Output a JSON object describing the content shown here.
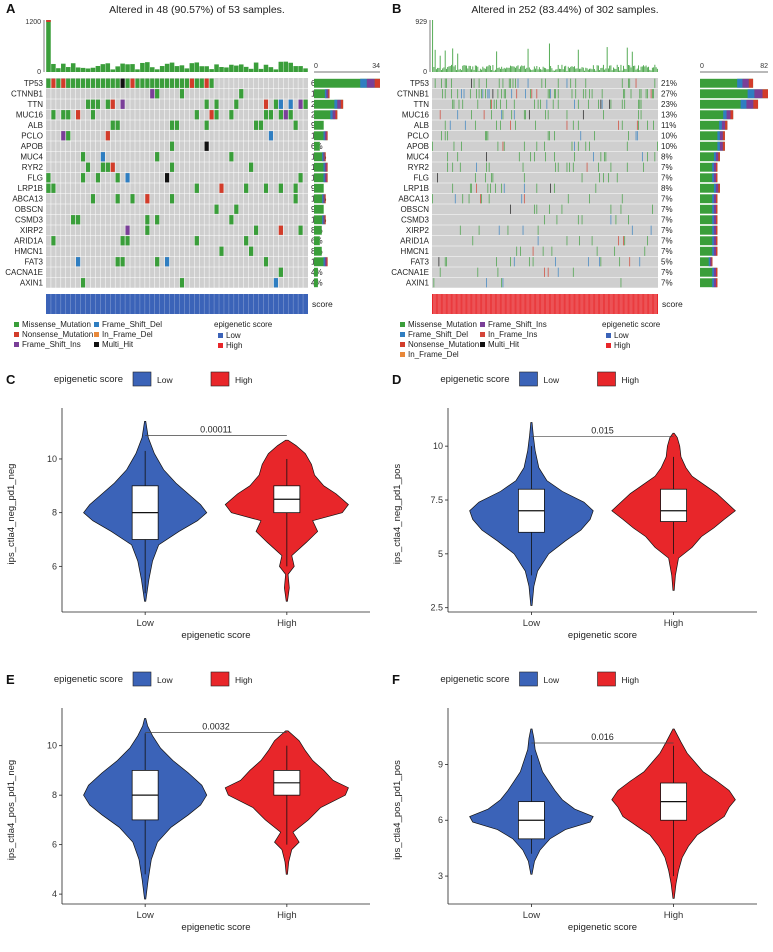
{
  "panels": [
    {
      "id": "A",
      "type": "oncoplot",
      "letter": "A",
      "title": "Altered in 48 (90.57%) of 53 samples.",
      "tmb_max": 1200,
      "tmb_min": 0,
      "side_axis": [
        0,
        34
      ],
      "n_samples": 53,
      "genes": [
        "TP53",
        "CTNNB1",
        "TTN",
        "MUC16",
        "ALB",
        "PCLO",
        "APOB",
        "MUC4",
        "RYR2",
        "FLG",
        "LRP1B",
        "ABCA13",
        "OBSCN",
        "CSMD3",
        "XIRP2",
        "ARID1A",
        "HMCN1",
        "FAT3",
        "CACNA1E",
        "AXIN1"
      ],
      "percent": [
        "64%",
        "15%",
        "28%",
        "23%",
        "9%",
        "13%",
        "6%",
        "11%",
        "13%",
        "13%",
        "9%",
        "11%",
        "9%",
        "11%",
        "8%",
        "6%",
        "8%",
        "13%",
        "4%",
        "4%"
      ],
      "side_counts": [
        34,
        8,
        15,
        12,
        5,
        7,
        3,
        6,
        7,
        7,
        5,
        6,
        5,
        6,
        4,
        3,
        4,
        7,
        2,
        2
      ],
      "score_label": "score",
      "score_color": "#3b63b8",
      "legend": [
        {
          "label": "Missense_Mutation",
          "color": "#3a9e3a"
        },
        {
          "label": "Nonsense_Mutation",
          "color": "#d23c2a"
        },
        {
          "label": "Frame_Shift_Ins",
          "color": "#7a3f98"
        },
        {
          "label": "Frame_Shift_Del",
          "color": "#2f7ec1"
        },
        {
          "label": "In_Frame_Del",
          "color": "#e8883a"
        },
        {
          "label": "Multi_Hit",
          "color": "#111111"
        }
      ],
      "score_legend_title": "epigenetic score",
      "score_legend": [
        {
          "label": "Low",
          "color": "#3b63b8"
        },
        {
          "label": "High",
          "color": "#e8262a"
        }
      ]
    },
    {
      "id": "B",
      "type": "oncoplot",
      "letter": "B",
      "title": "Altered in 252 (83.44%) of 302 samples.",
      "tmb_max": 929,
      "tmb_min": 0,
      "side_axis": [
        0,
        82
      ],
      "n_samples": 302,
      "genes": [
        "TP53",
        "CTNNB1",
        "TTN",
        "MUC16",
        "ALB",
        "PCLO",
        "APOB",
        "MUC4",
        "RYR2",
        "FLG",
        "LRP1B",
        "ABCA13",
        "OBSCN",
        "CSMD3",
        "XIRP2",
        "ARID1A",
        "HMCN1",
        "FAT3",
        "CACNA1E",
        "AXIN1"
      ],
      "percent": [
        "21%",
        "27%",
        "23%",
        "13%",
        "11%",
        "10%",
        "10%",
        "8%",
        "7%",
        "7%",
        "8%",
        "7%",
        "7%",
        "7%",
        "7%",
        "7%",
        "7%",
        "5%",
        "7%",
        "7%"
      ],
      "side_counts": [
        64,
        82,
        70,
        40,
        33,
        30,
        30,
        24,
        21,
        21,
        24,
        21,
        21,
        21,
        21,
        21,
        21,
        15,
        21,
        21
      ],
      "score_label": "score",
      "score_color": "#e8262a",
      "legend": [
        {
          "label": "Missense_Mutation",
          "color": "#3a9e3a"
        },
        {
          "label": "Frame_Shift_Del",
          "color": "#2f7ec1"
        },
        {
          "label": "Nonsense_Mutation",
          "color": "#d23c2a"
        },
        {
          "label": "In_Frame_Del",
          "color": "#e8883a"
        },
        {
          "label": "Frame_Shift_Ins",
          "color": "#7a3f98"
        },
        {
          "label": "In_Frame_Ins",
          "color": "#d4453a"
        },
        {
          "label": "Multi_Hit",
          "color": "#111111"
        }
      ],
      "score_legend_title": "epigenetic score",
      "score_legend": [
        {
          "label": "Low",
          "color": "#3b63b8"
        },
        {
          "label": "High",
          "color": "#e8262a"
        }
      ]
    }
  ],
  "chart_data": [
    {
      "id": "C",
      "type": "violin",
      "letter": "C",
      "legend_title": "epigenetic score",
      "categories": [
        "Low",
        "High"
      ],
      "colors": [
        "#3b63b8",
        "#e8262a"
      ],
      "xlabel": "epigenetic score",
      "ylabel": "ips_ctla4_neg_pd1_neg",
      "ylim": [
        4.3,
        11.6
      ],
      "yticks": [
        6,
        8,
        10
      ],
      "pvalue": "0.00011",
      "groups": [
        {
          "name": "Low",
          "min": 4.7,
          "q1": 7,
          "median": 8,
          "q3": 9,
          "max": 11.4,
          "whisker_low": 5.0,
          "whisker_high": 10.3,
          "density": [
            [
              4.7,
              0.01
            ],
            [
              5.5,
              0.06
            ],
            [
              6.2,
              0.12
            ],
            [
              6.8,
              0.22
            ],
            [
              7.3,
              0.55
            ],
            [
              7.7,
              0.85
            ],
            [
              8.0,
              1.0
            ],
            [
              8.3,
              0.9
            ],
            [
              8.7,
              0.7
            ],
            [
              9.1,
              0.5
            ],
            [
              9.6,
              0.3
            ],
            [
              10.2,
              0.15
            ],
            [
              10.8,
              0.05
            ],
            [
              11.4,
              0.01
            ]
          ]
        },
        {
          "name": "High",
          "min": 4.7,
          "q1": 8,
          "median": 8.5,
          "q3": 9,
          "max": 10.7,
          "whisker_low": 6.0,
          "whisker_high": 10.0,
          "density": [
            [
              4.7,
              0.01
            ],
            [
              5.2,
              0.04
            ],
            [
              5.7,
              0.02
            ],
            [
              6.0,
              0.12
            ],
            [
              6.4,
              0.08
            ],
            [
              6.9,
              0.32
            ],
            [
              7.3,
              0.5
            ],
            [
              7.7,
              0.42
            ],
            [
              8.0,
              0.9
            ],
            [
              8.3,
              1.0
            ],
            [
              8.7,
              0.8
            ],
            [
              9.0,
              0.6
            ],
            [
              9.4,
              0.45
            ],
            [
              9.8,
              0.4
            ],
            [
              10.2,
              0.3
            ],
            [
              10.5,
              0.15
            ],
            [
              10.7,
              0.02
            ]
          ]
        }
      ]
    },
    {
      "id": "D",
      "type": "violin",
      "letter": "D",
      "legend_title": "epigenetic score",
      "categories": [
        "Low",
        "High"
      ],
      "colors": [
        "#3b63b8",
        "#e8262a"
      ],
      "xlabel": "epigenetic score",
      "ylabel": "ips_ctla4_neg_pd1_pos",
      "ylim": [
        2.3,
        11.4
      ],
      "yticks": [
        2.5,
        5.0,
        7.5,
        10.0
      ],
      "pvalue": "0.015",
      "groups": [
        {
          "name": "Low",
          "min": 2.6,
          "q1": 6.0,
          "median": 7.0,
          "q3": 8.0,
          "max": 11.1,
          "whisker_low": 4.0,
          "whisker_high": 10.0,
          "density": [
            [
              2.6,
              0.01
            ],
            [
              3.5,
              0.04
            ],
            [
              4.2,
              0.1
            ],
            [
              5.0,
              0.28
            ],
            [
              5.6,
              0.55
            ],
            [
              6.1,
              0.8
            ],
            [
              6.6,
              0.95
            ],
            [
              7.0,
              1.0
            ],
            [
              7.4,
              0.85
            ],
            [
              7.9,
              0.5
            ],
            [
              8.4,
              0.25
            ],
            [
              9.0,
              0.12
            ],
            [
              9.8,
              0.06
            ],
            [
              10.5,
              0.03
            ],
            [
              11.1,
              0.01
            ]
          ]
        },
        {
          "name": "High",
          "min": 3.3,
          "q1": 6.5,
          "median": 7.0,
          "q3": 8.0,
          "max": 10.6,
          "whisker_low": 5.0,
          "whisker_high": 9.5,
          "density": [
            [
              3.3,
              0.01
            ],
            [
              4.0,
              0.03
            ],
            [
              4.8,
              0.08
            ],
            [
              5.3,
              0.3
            ],
            [
              5.8,
              0.45
            ],
            [
              6.2,
              0.65
            ],
            [
              6.6,
              0.82
            ],
            [
              7.0,
              1.0
            ],
            [
              7.4,
              0.85
            ],
            [
              7.8,
              0.7
            ],
            [
              8.2,
              0.5
            ],
            [
              8.6,
              0.3
            ],
            [
              9.0,
              0.2
            ],
            [
              9.5,
              0.12
            ],
            [
              10.0,
              0.1
            ],
            [
              10.4,
              0.06
            ],
            [
              10.6,
              0.01
            ]
          ]
        }
      ]
    },
    {
      "id": "E",
      "type": "violin",
      "letter": "E",
      "legend_title": "epigenetic score",
      "categories": [
        "Low",
        "High"
      ],
      "colors": [
        "#3b63b8",
        "#e8262a"
      ],
      "xlabel": "epigenetic score",
      "ylabel": "ips_ctla4_pos_pd1_neg",
      "ylim": [
        3.6,
        11.2
      ],
      "yticks": [
        4,
        6,
        8,
        10
      ],
      "pvalue": "0.0032",
      "groups": [
        {
          "name": "Low",
          "min": 3.8,
          "q1": 7,
          "median": 8,
          "q3": 9,
          "max": 11.1,
          "whisker_low": 4.8,
          "whisker_high": 10.5,
          "density": [
            [
              3.8,
              0.01
            ],
            [
              4.6,
              0.05
            ],
            [
              5.4,
              0.1
            ],
            [
              6.1,
              0.2
            ],
            [
              6.7,
              0.42
            ],
            [
              7.2,
              0.7
            ],
            [
              7.6,
              0.9
            ],
            [
              8.0,
              1.0
            ],
            [
              8.4,
              0.92
            ],
            [
              8.9,
              0.7
            ],
            [
              9.4,
              0.45
            ],
            [
              9.9,
              0.25
            ],
            [
              10.4,
              0.12
            ],
            [
              10.8,
              0.04
            ],
            [
              11.1,
              0.01
            ]
          ]
        },
        {
          "name": "High",
          "min": 4.8,
          "q1": 8,
          "median": 8.5,
          "q3": 9,
          "max": 10.6,
          "whisker_low": 6,
          "whisker_high": 10,
          "density": [
            [
              4.8,
              0.01
            ],
            [
              5.3,
              0.03
            ],
            [
              5.8,
              0.08
            ],
            [
              6.1,
              0.2
            ],
            [
              6.5,
              0.1
            ],
            [
              7.0,
              0.35
            ],
            [
              7.5,
              0.55
            ],
            [
              8.0,
              0.95
            ],
            [
              8.3,
              1.0
            ],
            [
              8.6,
              0.75
            ],
            [
              9.0,
              0.6
            ],
            [
              9.4,
              0.42
            ],
            [
              9.8,
              0.3
            ],
            [
              10.2,
              0.2
            ],
            [
              10.6,
              0.02
            ]
          ]
        }
      ]
    },
    {
      "id": "F",
      "type": "violin",
      "letter": "F",
      "legend_title": "epigenetic score",
      "categories": [
        "Low",
        "High"
      ],
      "colors": [
        "#3b63b8",
        "#e8262a"
      ],
      "xlabel": "epigenetic score",
      "ylabel": "ips_ctla4_pos_pd1_pos",
      "ylim": [
        1.5,
        11.6
      ],
      "yticks": [
        3,
        6,
        9
      ],
      "pvalue": "0.016",
      "groups": [
        {
          "name": "Low",
          "min": 3.1,
          "q1": 5,
          "median": 6,
          "q3": 7,
          "max": 10.9,
          "whisker_low": 4.2,
          "whisker_high": 9.5,
          "density": [
            [
              3.1,
              0.01
            ],
            [
              3.8,
              0.05
            ],
            [
              4.4,
              0.14
            ],
            [
              5.0,
              0.3
            ],
            [
              5.5,
              0.55
            ],
            [
              5.9,
              0.95
            ],
            [
              6.2,
              1.0
            ],
            [
              6.6,
              0.7
            ],
            [
              7.1,
              0.5
            ],
            [
              7.6,
              0.38
            ],
            [
              8.1,
              0.28
            ],
            [
              8.6,
              0.18
            ],
            [
              9.2,
              0.12
            ],
            [
              9.8,
              0.06
            ],
            [
              10.4,
              0.04
            ],
            [
              10.9,
              0.01
            ]
          ]
        },
        {
          "name": "High",
          "min": 1.8,
          "q1": 6,
          "median": 7,
          "q3": 8,
          "max": 10.9,
          "whisker_low": 3.0,
          "whisker_high": 10.0,
          "density": [
            [
              1.8,
              0.01
            ],
            [
              2.6,
              0.04
            ],
            [
              3.3,
              0.08
            ],
            [
              4.0,
              0.14
            ],
            [
              4.6,
              0.24
            ],
            [
              5.2,
              0.38
            ],
            [
              5.7,
              0.6
            ],
            [
              6.2,
              0.82
            ],
            [
              6.7,
              0.9
            ],
            [
              7.1,
              1.0
            ],
            [
              7.6,
              0.9
            ],
            [
              8.1,
              0.7
            ],
            [
              8.6,
              0.48
            ],
            [
              9.1,
              0.35
            ],
            [
              9.6,
              0.22
            ],
            [
              10.2,
              0.12
            ],
            [
              10.9,
              0.01
            ]
          ]
        }
      ]
    }
  ]
}
